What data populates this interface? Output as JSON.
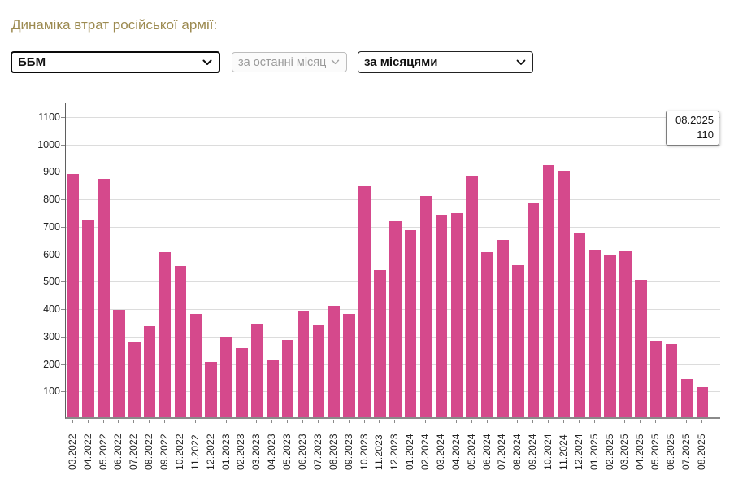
{
  "page": {
    "title": "Динаміка втрат російської армії:"
  },
  "controls": {
    "vehicle_select": {
      "value": "ББМ",
      "disabled": false
    },
    "period_select": {
      "value": "за останні місяці",
      "disabled": true
    },
    "grouping_select": {
      "value": "за місяцями",
      "disabled": false
    }
  },
  "tooltip": {
    "date": "08.2025",
    "value": "110"
  },
  "colors": {
    "bar": "#d5498c",
    "title": "#9c8a50",
    "gridline": "#dcdcdc",
    "axis": "#8a8a8a",
    "disabled_text": "#9a9a9a"
  },
  "chart_data": {
    "type": "bar",
    "title": "Динаміка втрат російської армії: ББМ за місяцями",
    "categories": [
      "03.2022",
      "04.2022",
      "05.2022",
      "06.2022",
      "07.2022",
      "08.2022",
      "09.2022",
      "10.2022",
      "11.2022",
      "12.2022",
      "01.2023",
      "02.2023",
      "03.2023",
      "04.2023",
      "05.2023",
      "06.2023",
      "07.2023",
      "08.2023",
      "09.2023",
      "10.2023",
      "11.2023",
      "12.2023",
      "01.2024",
      "02.2024",
      "03.2024",
      "04.2024",
      "05.2024",
      "06.2024",
      "07.2024",
      "08.2024",
      "09.2024",
      "10.2024",
      "11.2024",
      "12.2024",
      "01.2025",
      "02.2025",
      "03.2025",
      "04.2025",
      "05.2025",
      "06.2025",
      "07.2025",
      "08.2025"
    ],
    "values": [
      887,
      717,
      868,
      390,
      272,
      331,
      602,
      550,
      375,
      203,
      293,
      253,
      341,
      208,
      281,
      387,
      336,
      405,
      375,
      841,
      535,
      713,
      683,
      805,
      739,
      743,
      879,
      602,
      647,
      553,
      782,
      920,
      899,
      674,
      610,
      594,
      606,
      502,
      278,
      267,
      140,
      110
    ],
    "xlabel": "",
    "ylabel": "",
    "ylim": [
      0,
      1150
    ],
    "yticks": [
      100,
      200,
      300,
      400,
      500,
      600,
      700,
      800,
      900,
      1000,
      1100
    ],
    "grid": true,
    "legend": false,
    "highlighted_point": {
      "category": "08.2025",
      "value": 110
    }
  }
}
